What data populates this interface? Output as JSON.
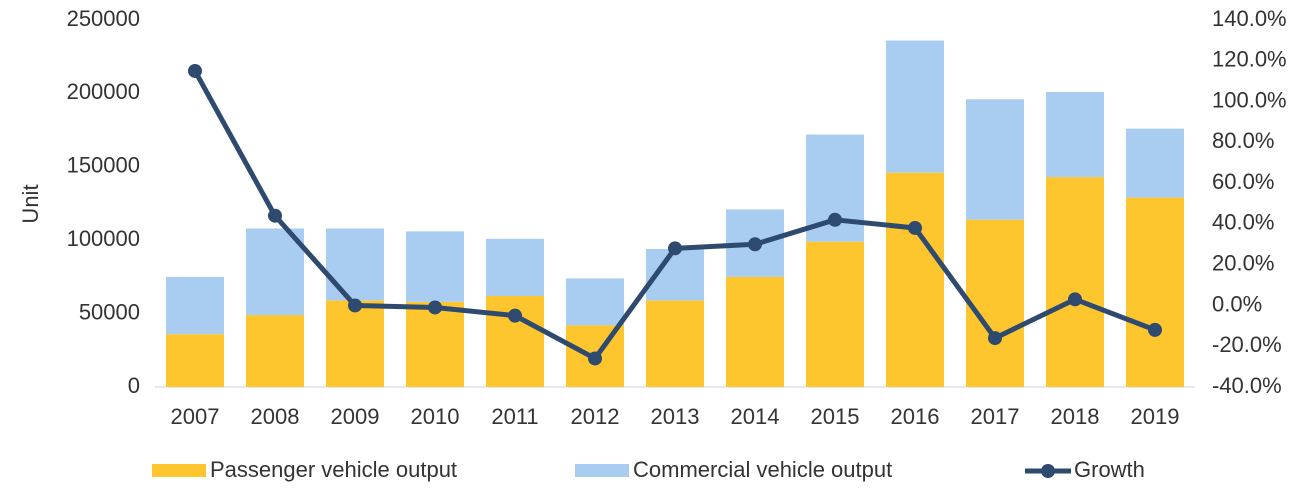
{
  "chart_data": {
    "type": "bar-line",
    "y_label": "Unit",
    "categories": [
      "2007",
      "2008",
      "2009",
      "2010",
      "2011",
      "2012",
      "2013",
      "2014",
      "2015",
      "2016",
      "2017",
      "2018",
      "2019"
    ],
    "series": [
      {
        "name": "Passenger vehicle output",
        "color": "#fdc62f",
        "type": "bar",
        "values": [
          36000,
          49000,
          59000,
          58000,
          62000,
          42000,
          59000,
          75000,
          99000,
          146000,
          114000,
          143000,
          129000
        ]
      },
      {
        "name": "Commercial vehicle output",
        "color": "#a9cdf0",
        "type": "bar",
        "values": [
          39000,
          59000,
          49000,
          48000,
          39000,
          32000,
          35000,
          46000,
          73000,
          90000,
          82000,
          58000,
          47000
        ]
      },
      {
        "name": "Growth",
        "color": "#2f4a6f",
        "type": "line",
        "axis": "y2",
        "values": [
          115,
          44,
          0,
          -1,
          -5,
          -26,
          28,
          30,
          42,
          38,
          -16,
          3,
          -12
        ]
      }
    ],
    "ylim": [
      0,
      250000
    ],
    "yticks": [
      0,
      50000,
      100000,
      150000,
      200000,
      250000
    ],
    "y2lim": [
      -40,
      140
    ],
    "y2ticks": [
      {
        "value": -40,
        "label": "-40.0%"
      },
      {
        "value": -20,
        "label": "-20.0%"
      },
      {
        "value": 0,
        "label": "0.0%"
      },
      {
        "value": 20,
        "label": "20.0%"
      },
      {
        "value": 40,
        "label": "40.0%"
      },
      {
        "value": 60,
        "label": "60.0%"
      },
      {
        "value": 80,
        "label": "80.0%"
      },
      {
        "value": 100,
        "label": "100.0%"
      },
      {
        "value": 120,
        "label": "120.0%"
      },
      {
        "value": 140,
        "label": "140.0%"
      }
    ],
    "legend": "bottom",
    "grid": false
  }
}
